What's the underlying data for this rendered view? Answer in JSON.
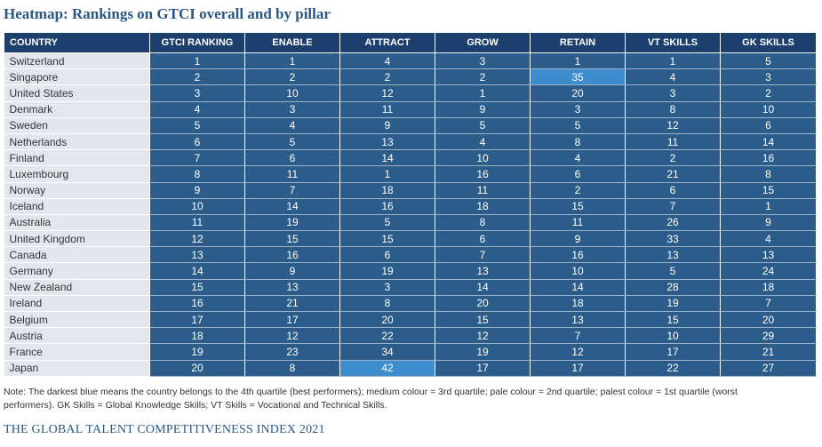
{
  "title": "Heatmap: Rankings on GTCI overall and by pillar",
  "table": {
    "headers": [
      "COUNTRY",
      "GTCI RANKING",
      "ENABLE",
      "ATTRACT",
      "GROW",
      "RETAIN",
      "VT SKILLS",
      "GK SKILLS"
    ],
    "rows": [
      [
        "Switzerland",
        "1",
        "1",
        "4",
        "3",
        "1",
        "1",
        "5"
      ],
      [
        "Singapore",
        "2",
        "2",
        "2",
        "2",
        "35",
        "4",
        "3"
      ],
      [
        "United States",
        "3",
        "10",
        "12",
        "1",
        "20",
        "3",
        "2"
      ],
      [
        "Denmark",
        "4",
        "3",
        "11",
        "9",
        "3",
        "8",
        "10"
      ],
      [
        "Sweden",
        "5",
        "4",
        "9",
        "5",
        "5",
        "12",
        "6"
      ],
      [
        "Netherlands",
        "6",
        "5",
        "13",
        "4",
        "8",
        "11",
        "14"
      ],
      [
        "Finland",
        "7",
        "6",
        "14",
        "10",
        "4",
        "2",
        "16"
      ],
      [
        "Luxembourg",
        "8",
        "11",
        "1",
        "16",
        "6",
        "21",
        "8"
      ],
      [
        "Norway",
        "9",
        "7",
        "18",
        "11",
        "2",
        "6",
        "15"
      ],
      [
        "Iceland",
        "10",
        "14",
        "16",
        "18",
        "15",
        "7",
        "1"
      ],
      [
        "Australia",
        "11",
        "19",
        "5",
        "8",
        "11",
        "26",
        "9"
      ],
      [
        "United Kingdom",
        "12",
        "15",
        "15",
        "6",
        "9",
        "33",
        "4"
      ],
      [
        "Canada",
        "13",
        "16",
        "6",
        "7",
        "16",
        "13",
        "13"
      ],
      [
        "Germany",
        "14",
        "9",
        "19",
        "13",
        "10",
        "5",
        "24"
      ],
      [
        "New Zealand",
        "15",
        "13",
        "3",
        "14",
        "14",
        "28",
        "18"
      ],
      [
        "Ireland",
        "16",
        "21",
        "8",
        "20",
        "18",
        "19",
        "7"
      ],
      [
        "Belgium",
        "17",
        "17",
        "20",
        "15",
        "13",
        "15",
        "20"
      ],
      [
        "Austria",
        "18",
        "12",
        "22",
        "12",
        "7",
        "10",
        "29"
      ],
      [
        "France",
        "19",
        "23",
        "34",
        "19",
        "12",
        "17",
        "21"
      ],
      [
        "Japan",
        "20",
        "8",
        "42",
        "17",
        "17",
        "22",
        "27"
      ]
    ],
    "pale_cells": [
      [
        1,
        5
      ],
      [
        19,
        3
      ]
    ]
  },
  "colors": {
    "header_bg": "#1c3f6e",
    "quartile_4th": "#2c5d8a",
    "quartile_3rd": "#3d8ccc",
    "country_bg": "#e3e7ed",
    "title_color": "#2a5783"
  },
  "note_line1": "Note: The darkest blue means the country belongs to the 4th quartile (best performers); medium colour = 3rd quartile; pale colour = 2nd quartile; palest colour = 1st quartile (worst",
  "note_line2": "performers). GK Skills = Global Knowledge Skills; VT Skills = Vocational and Technical Skills.",
  "footer": "THE GLOBAL TALENT COMPETITIVENESS INDEX 2021"
}
